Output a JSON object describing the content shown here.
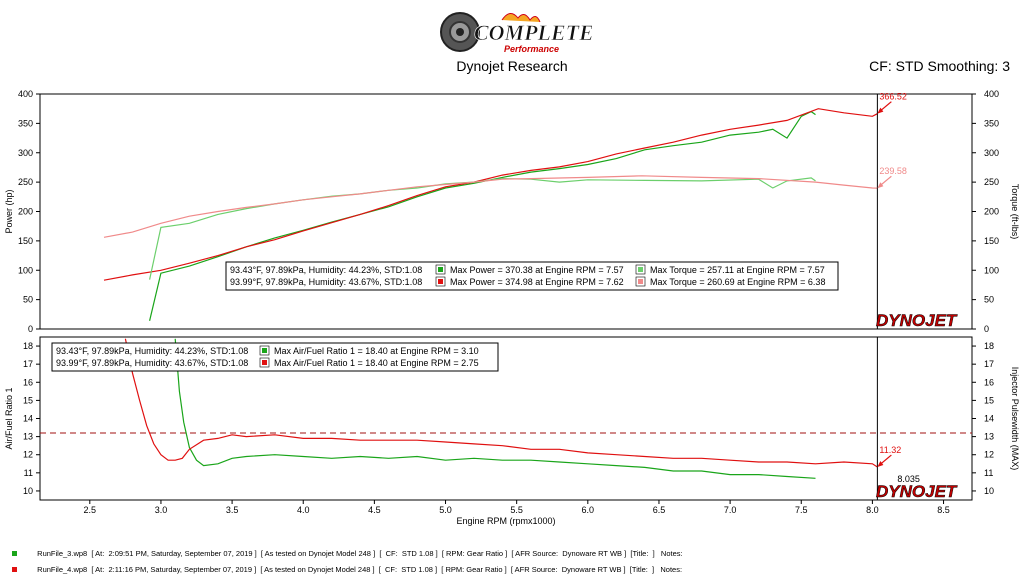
{
  "header": {
    "logo_text": "COMPLETE",
    "logo_sub": "Performance",
    "title": "Dynojet Research",
    "cf": "CF: STD Smoothing: 3"
  },
  "brand": "DYNOJET",
  "colors": {
    "green": "#1aa51a",
    "red": "#e01010",
    "light_green": "#6ccf6c",
    "light_red": "#f08a8a",
    "frame": "#000000",
    "cursor": "#000000",
    "afr_ref": "#a01010"
  },
  "chart_data": [
    {
      "type": "line",
      "name": "power-torque",
      "ylabel": "Power (hp)",
      "y2label": "Torque (ft-lbs)",
      "xlim": [
        2.15,
        8.7
      ],
      "ylim": [
        0,
        400
      ],
      "y2lim": [
        0,
        400
      ],
      "yticks": [
        0,
        50,
        100,
        150,
        200,
        250,
        300,
        350,
        400
      ],
      "cursor_x": 8.035,
      "series": [
        {
          "role": "power-run3",
          "axis": "left",
          "color": "#1aa51a",
          "x": [
            2.92,
            3.0,
            3.2,
            3.4,
            3.6,
            3.8,
            4.0,
            4.2,
            4.4,
            4.6,
            4.8,
            5.0,
            5.2,
            5.4,
            5.6,
            5.8,
            6.0,
            6.2,
            6.4,
            6.6,
            6.8,
            7.0,
            7.2,
            7.3,
            7.4,
            7.5,
            7.57,
            7.6
          ],
          "y": [
            14,
            95,
            107,
            123,
            140,
            155,
            168,
            182,
            195,
            208,
            225,
            240,
            248,
            258,
            267,
            273,
            280,
            290,
            305,
            312,
            318,
            330,
            335,
            340,
            325,
            362,
            370,
            365
          ]
        },
        {
          "role": "power-run4",
          "axis": "left",
          "color": "#e01010",
          "x": [
            2.6,
            2.8,
            3.0,
            3.2,
            3.4,
            3.6,
            3.8,
            4.0,
            4.2,
            4.4,
            4.6,
            4.8,
            5.0,
            5.2,
            5.4,
            5.6,
            5.8,
            6.0,
            6.2,
            6.4,
            6.6,
            6.8,
            7.0,
            7.2,
            7.4,
            7.62,
            7.8,
            8.0,
            8.035
          ],
          "y": [
            83,
            92,
            100,
            112,
            125,
            140,
            152,
            167,
            181,
            195,
            210,
            227,
            242,
            250,
            262,
            270,
            276,
            285,
            298,
            308,
            318,
            330,
            340,
            347,
            355,
            375,
            368,
            362,
            366.52
          ]
        },
        {
          "role": "torque-run3",
          "axis": "right",
          "color": "#6ccf6c",
          "x": [
            2.92,
            3.0,
            3.2,
            3.4,
            3.6,
            3.8,
            4.0,
            4.2,
            4.4,
            4.6,
            4.8,
            5.0,
            5.2,
            5.4,
            5.6,
            5.8,
            6.0,
            6.4,
            6.8,
            7.2,
            7.3,
            7.4,
            7.57,
            7.6
          ],
          "y": [
            84,
            173,
            180,
            195,
            205,
            213,
            220,
            226,
            230,
            236,
            240,
            247,
            250,
            256,
            255,
            250,
            254,
            253,
            252,
            255,
            240,
            252,
            257.11,
            252
          ]
        },
        {
          "role": "torque-run4",
          "axis": "right",
          "color": "#f08a8a",
          "x": [
            2.6,
            2.8,
            3.0,
            3.2,
            3.4,
            3.6,
            3.8,
            4.0,
            4.2,
            4.4,
            4.6,
            4.8,
            5.0,
            5.2,
            5.4,
            5.6,
            5.8,
            6.0,
            6.38,
            6.8,
            7.2,
            7.6,
            7.8,
            8.0,
            8.035
          ],
          "y": [
            156,
            165,
            180,
            192,
            200,
            207,
            213,
            220,
            225,
            230,
            236,
            242,
            246,
            250,
            255,
            256,
            257,
            258,
            260.69,
            258,
            256,
            250,
            245,
            240,
            239.58
          ]
        }
      ],
      "annotations": [
        {
          "label": "366.52",
          "x": 8.035,
          "y": 366.52,
          "color": "#e01010"
        },
        {
          "label": "239.58",
          "x": 8.035,
          "y": 239.58,
          "color": "#f08a8a"
        }
      ],
      "legend": {
        "rows": [
          {
            "cond": "93.43°F, 97.89kPa, Humidity: 44.23%, STD:1.08",
            "c1": "#1aa51a",
            "t1": "Max Power = 370.38 at Engine RPM = 7.57",
            "c2": "#6ccf6c",
            "t2": "Max Torque = 257.11 at Engine RPM = 7.57"
          },
          {
            "cond": "93.99°F, 97.89kPa, Humidity: 43.67%, STD:1.08",
            "c1": "#e01010",
            "t1": "Max Power = 374.98 at Engine RPM = 7.62",
            "c2": "#f08a8a",
            "t2": "Max Torque = 260.69 at Engine RPM = 6.38"
          }
        ]
      }
    },
    {
      "type": "line",
      "name": "air-fuel",
      "ylabel": "Air/Fuel Ratio 1",
      "y2label": "Injector Pulsewidth (MAX)",
      "xlabel": "Engine RPM (rpmx1000)",
      "xlim": [
        2.15,
        8.7
      ],
      "ylim": [
        9.5,
        18.5
      ],
      "y2lim": [
        9.5,
        18.5
      ],
      "yticks": [
        10,
        11,
        12,
        13,
        14,
        15,
        16,
        17,
        18
      ],
      "xticks": [
        2.5,
        3.0,
        3.5,
        4.0,
        4.5,
        5.0,
        5.5,
        6.0,
        6.5,
        7.0,
        7.5,
        8.0,
        8.5
      ],
      "reference_y": 13.2,
      "cursor_x": 8.035,
      "cursor_label": "8.035",
      "series": [
        {
          "role": "afr-run3",
          "color": "#1aa51a",
          "x": [
            3.1,
            3.13,
            3.16,
            3.2,
            3.25,
            3.3,
            3.4,
            3.5,
            3.6,
            3.8,
            4.0,
            4.2,
            4.4,
            4.6,
            4.8,
            5.0,
            5.2,
            5.4,
            5.6,
            5.8,
            6.0,
            6.2,
            6.4,
            6.6,
            6.8,
            7.0,
            7.2,
            7.4,
            7.6
          ],
          "y": [
            18.4,
            15.5,
            13.8,
            12.4,
            11.7,
            11.4,
            11.5,
            11.8,
            11.9,
            12.0,
            11.9,
            11.8,
            11.9,
            11.8,
            11.9,
            11.7,
            11.8,
            11.7,
            11.7,
            11.6,
            11.5,
            11.4,
            11.3,
            11.1,
            11.1,
            10.9,
            10.9,
            10.8,
            10.7
          ]
        },
        {
          "role": "afr-run4",
          "color": "#e01010",
          "x": [
            2.75,
            2.8,
            2.85,
            2.9,
            2.95,
            3.0,
            3.05,
            3.1,
            3.15,
            3.2,
            3.3,
            3.4,
            3.5,
            3.6,
            3.8,
            4.0,
            4.2,
            4.4,
            4.6,
            4.8,
            5.0,
            5.2,
            5.4,
            5.6,
            5.8,
            6.0,
            6.2,
            6.4,
            6.6,
            6.8,
            7.0,
            7.2,
            7.4,
            7.6,
            7.8,
            8.0,
            8.035
          ],
          "y": [
            18.4,
            16.5,
            15.0,
            13.6,
            12.6,
            12.0,
            11.7,
            11.7,
            11.8,
            12.3,
            12.8,
            12.9,
            13.1,
            13.0,
            13.1,
            12.9,
            12.9,
            12.8,
            12.8,
            12.8,
            12.7,
            12.6,
            12.5,
            12.3,
            12.3,
            12.1,
            12.0,
            11.9,
            11.8,
            11.8,
            11.7,
            11.6,
            11.6,
            11.5,
            11.6,
            11.5,
            11.32
          ]
        }
      ],
      "annotations": [
        {
          "label": "11.32",
          "x": 8.035,
          "y": 11.32,
          "color": "#e01010"
        }
      ],
      "legend": {
        "rows": [
          {
            "cond": "93.43°F, 97.89kPa, Humidity: 44.23%, STD:1.08",
            "c1": "#1aa51a",
            "t1": "Max Air/Fuel Ratio 1 = 18.40 at Engine RPM = 3.10"
          },
          {
            "cond": "93.99°F, 97.89kPa, Humidity: 43.67%, STD:1.08",
            "c1": "#e01010",
            "t1": "Max Air/Fuel Ratio 1 = 18.40 at Engine RPM = 2.75"
          }
        ]
      }
    }
  ],
  "footer": [
    {
      "color": "#1aa51a",
      "text": "RunFile_3.wp8  [ At:  2:09:51 PM, Saturday, September 07, 2019 ]  [ As tested on Dynojet Model 248 ]  [  CF:  STD 1.08 ]  [ RPM: Gear Ratio ]  [ AFR Source:  Dynoware RT WB ]  [Title:  ]   Notes:"
    },
    {
      "color": "#e01010",
      "text": "RunFile_4.wp8  [ At:  2:11:16 PM, Saturday, September 07, 2019 ]  [ As tested on Dynojet Model 248 ]  [  CF:  STD 1.08 ]  [ RPM: Gear Ratio ]  [ AFR Source:  Dynoware RT WB ]  [Title:  ]   Notes:"
    }
  ]
}
